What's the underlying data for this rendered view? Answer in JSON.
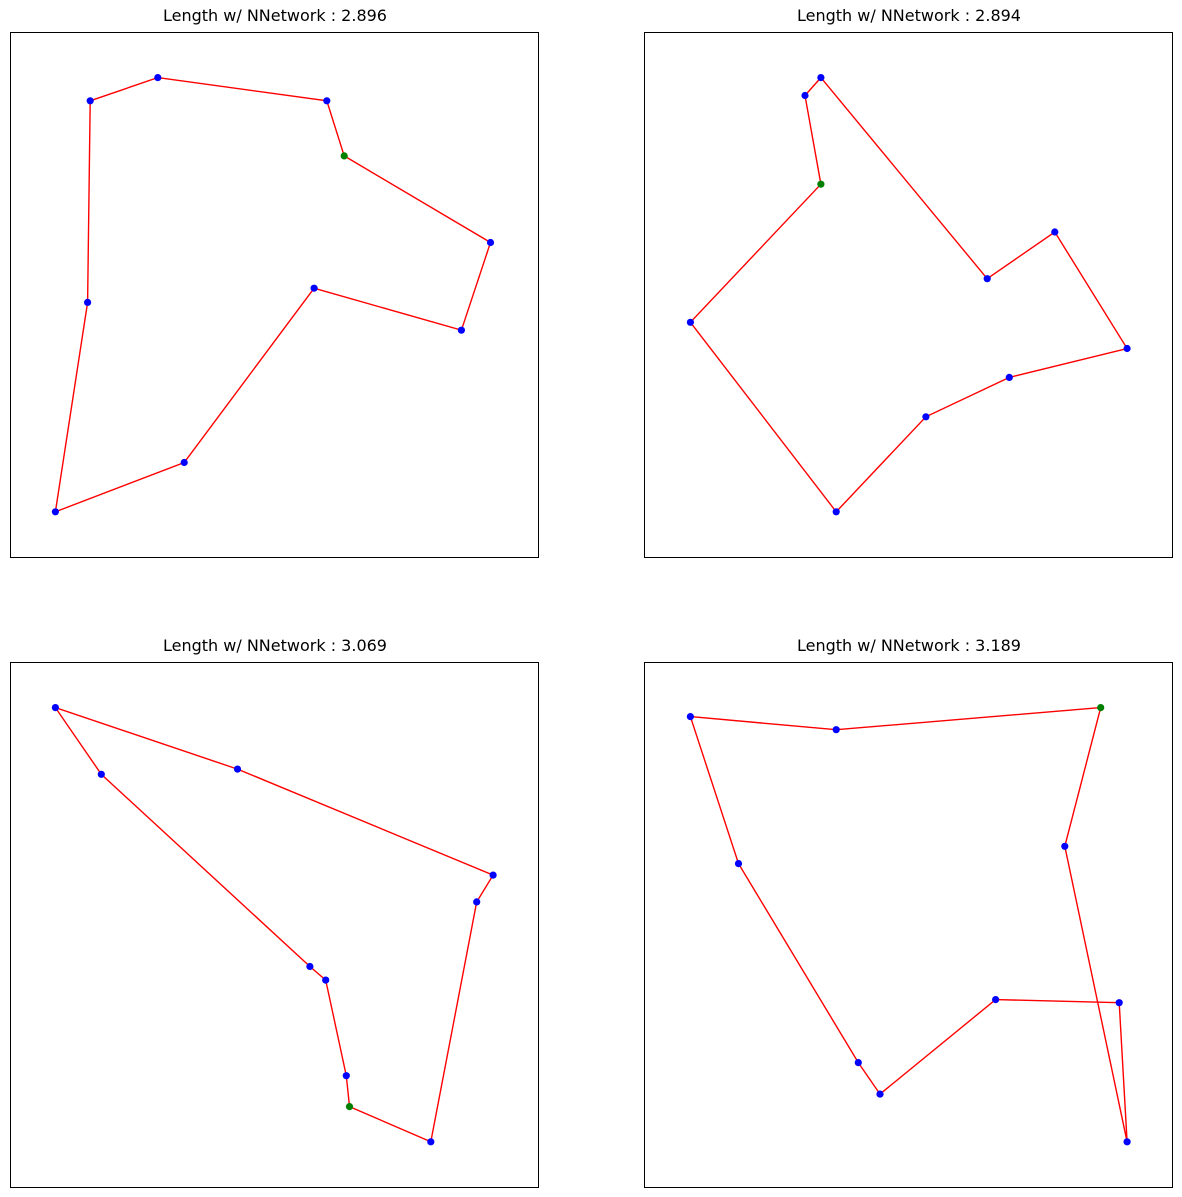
{
  "colors": {
    "route": "#ff0000",
    "point": "#0000ff",
    "start": "#008000"
  },
  "chart_data": [
    {
      "type": "scatter",
      "title": "Length w/ NNetwork : 2.896",
      "xlim": [
        0,
        1
      ],
      "ylim": [
        0,
        1
      ],
      "grid": false,
      "points": [
        {
          "x": 0.632,
          "y": 0.765,
          "start": true
        },
        {
          "x": 0.909,
          "y": 0.6
        },
        {
          "x": 0.854,
          "y": 0.433
        },
        {
          "x": 0.575,
          "y": 0.513
        },
        {
          "x": 0.329,
          "y": 0.181
        },
        {
          "x": 0.085,
          "y": 0.087
        },
        {
          "x": 0.146,
          "y": 0.486
        },
        {
          "x": 0.151,
          "y": 0.87
        },
        {
          "x": 0.279,
          "y": 0.914
        },
        {
          "x": 0.599,
          "y": 0.87
        }
      ]
    },
    {
      "type": "scatter",
      "title": "Length w/ NNetwork : 2.894",
      "xlim": [
        0,
        1
      ],
      "ylim": [
        0,
        1
      ],
      "grid": false,
      "points": [
        {
          "x": 0.334,
          "y": 0.711,
          "start": true
        },
        {
          "x": 0.087,
          "y": 0.448
        },
        {
          "x": 0.363,
          "y": 0.087
        },
        {
          "x": 0.533,
          "y": 0.268
        },
        {
          "x": 0.691,
          "y": 0.343
        },
        {
          "x": 0.914,
          "y": 0.398
        },
        {
          "x": 0.777,
          "y": 0.62
        },
        {
          "x": 0.649,
          "y": 0.531
        },
        {
          "x": 0.334,
          "y": 0.914
        },
        {
          "x": 0.304,
          "y": 0.88
        }
      ]
    },
    {
      "type": "scatter",
      "title": "Length w/ NNetwork : 3.069",
      "xlim": [
        0,
        1
      ],
      "ylim": [
        0,
        1
      ],
      "grid": false,
      "points": [
        {
          "x": 0.642,
          "y": 0.154,
          "start": true
        },
        {
          "x": 0.636,
          "y": 0.213
        },
        {
          "x": 0.597,
          "y": 0.395
        },
        {
          "x": 0.567,
          "y": 0.421
        },
        {
          "x": 0.172,
          "y": 0.787
        },
        {
          "x": 0.085,
          "y": 0.914
        },
        {
          "x": 0.43,
          "y": 0.797
        },
        {
          "x": 0.914,
          "y": 0.595
        },
        {
          "x": 0.883,
          "y": 0.544
        },
        {
          "x": 0.796,
          "y": 0.087
        }
      ]
    },
    {
      "type": "scatter",
      "title": "Length w/ NNetwork : 3.189",
      "xlim": [
        0,
        1
      ],
      "ylim": [
        0,
        1
      ],
      "grid": false,
      "points": [
        {
          "x": 0.864,
          "y": 0.914,
          "start": true
        },
        {
          "x": 0.363,
          "y": 0.872
        },
        {
          "x": 0.087,
          "y": 0.897
        },
        {
          "x": 0.178,
          "y": 0.617
        },
        {
          "x": 0.405,
          "y": 0.238
        },
        {
          "x": 0.446,
          "y": 0.178
        },
        {
          "x": 0.665,
          "y": 0.358
        },
        {
          "x": 0.899,
          "y": 0.352
        },
        {
          "x": 0.914,
          "y": 0.087
        },
        {
          "x": 0.796,
          "y": 0.65
        }
      ]
    }
  ]
}
